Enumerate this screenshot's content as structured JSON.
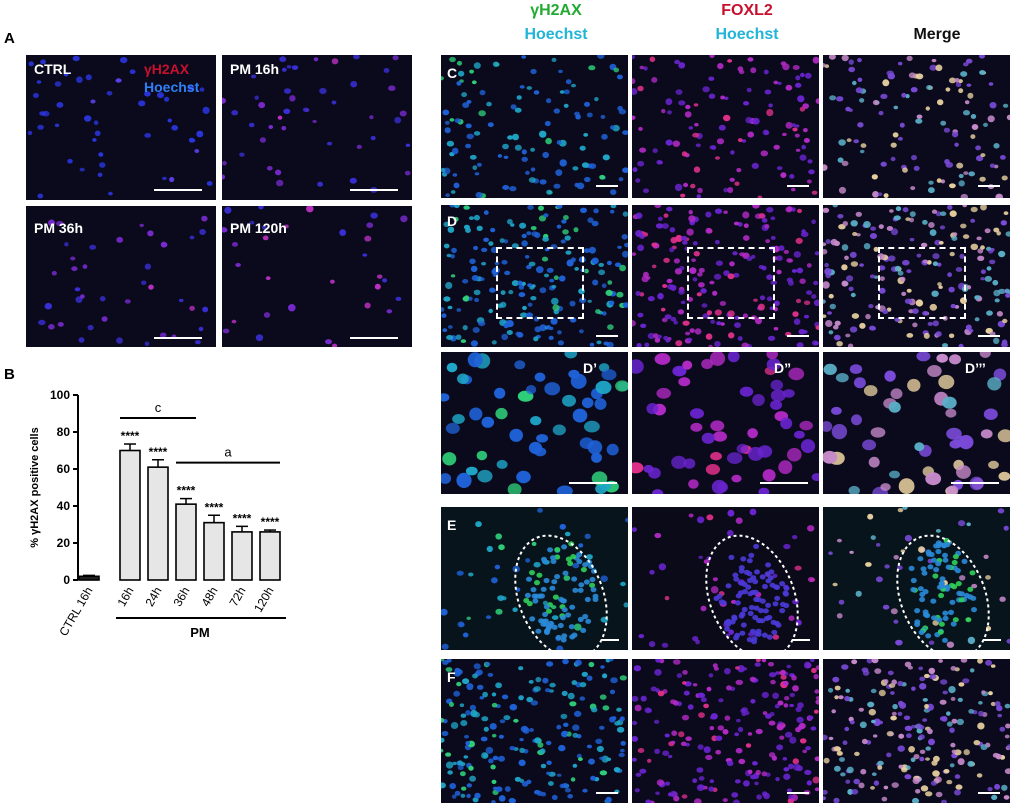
{
  "panel_letters": {
    "a": "A",
    "b": "B",
    "c": "C",
    "d": "D",
    "d1": "D’",
    "d2": "D”",
    "d3": "D’’’",
    "e": "E",
    "f": "F"
  },
  "panel_a": {
    "labels": {
      "ctrl": "CTRL",
      "pm16": "PM 16h",
      "pm36": "PM 36h",
      "pm120": "PM 120h",
      "stain_red": "γH2AX",
      "stain_blue": "Hoechst"
    }
  },
  "column_headers": {
    "col1_line1": "γH2AX",
    "col1_line2": "Hoechst",
    "col2_line1": "FOXL2",
    "col2_line2": "Hoechst",
    "col3": "Merge"
  },
  "colors": {
    "green": "#22aa33",
    "red": "#c8102e",
    "cyan": "#22b5d8",
    "blue_nuclei": "#2a3bd6",
    "magenta_nuclei": "#b02bc8",
    "bar_fill": "#e6e6e6"
  },
  "chart_data": {
    "type": "bar",
    "ylabel": "% γH2AX positive cells",
    "xlabel": "PM",
    "ylim": [
      0,
      100
    ],
    "yticks": [
      "0",
      "20",
      "40",
      "60",
      "80",
      "100"
    ],
    "categories": [
      "CTRL 16h",
      "16h",
      "24h",
      "36h",
      "48h",
      "72h",
      "120h"
    ],
    "values": [
      2,
      70,
      61,
      41,
      31,
      26,
      26
    ],
    "errors": [
      0.5,
      3.5,
      4,
      3,
      4,
      3,
      1
    ],
    "significance": [
      "",
      "****",
      "****",
      "****",
      "****",
      "****",
      "****"
    ],
    "brackets": [
      {
        "label": "c",
        "from": "16h",
        "to": "36h"
      },
      {
        "label": "a",
        "from": "36h",
        "to": "120h"
      }
    ],
    "grid": false,
    "legend": "none"
  }
}
